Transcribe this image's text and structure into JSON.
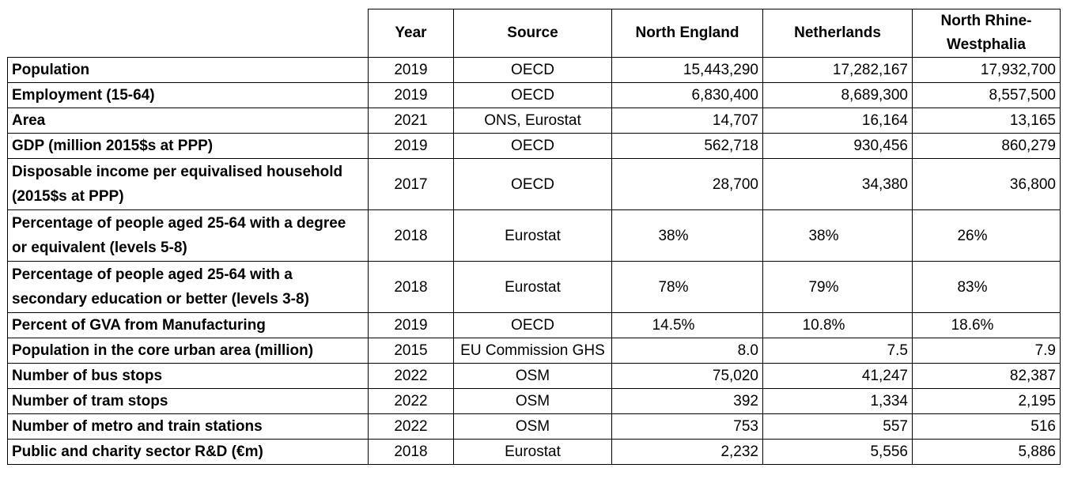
{
  "table": {
    "headers": {
      "label": "",
      "year": "Year",
      "source": "Source",
      "north_england": "North England",
      "netherlands": "Netherlands",
      "nrw": "North Rhine-Westphalia"
    },
    "rows": [
      {
        "label": "Population",
        "year": "2019",
        "source": "OECD",
        "north_england": "15,443,290",
        "netherlands": "17,282,167",
        "nrw": "17,932,700"
      },
      {
        "label": "Employment (15-64)",
        "year": "2019",
        "source": "OECD",
        "north_england": "6,830,400",
        "netherlands": "8,689,300",
        "nrw": "8,557,500"
      },
      {
        "label": "Area",
        "year": "2021",
        "source": "ONS, Eurostat",
        "north_england": "14,707",
        "netherlands": "16,164",
        "nrw": "13,165"
      },
      {
        "label": "GDP (million 2015$s at PPP)",
        "year": "2019",
        "source": "OECD",
        "north_england": "562,718",
        "netherlands": "930,456",
        "nrw": "860,279"
      },
      {
        "label": "Disposable income per equivalised household (2015$s at PPP)",
        "year": "2017",
        "source": "OECD",
        "north_england": "28,700",
        "netherlands": "34,380",
        "nrw": "36,800"
      },
      {
        "label": "Percentage of people aged 25-64 with a degree or equivalent (levels 5-8)",
        "year": "2018",
        "source": "Eurostat",
        "north_england": "38%",
        "netherlands": "38%",
        "nrw": "26%"
      },
      {
        "label": "Percentage of people aged 25-64 with a secondary education or better (levels 3-8)",
        "year": "2018",
        "source": "Eurostat",
        "north_england": "78%",
        "netherlands": "79%",
        "nrw": "83%"
      },
      {
        "label": "Percent of GVA from Manufacturing",
        "year": "2019",
        "source": "OECD",
        "north_england": "14.5%",
        "netherlands": "10.8%",
        "nrw": "18.6%"
      },
      {
        "label": "Population in the core urban area (million)",
        "year": "2015",
        "source": "EU Commission GHS",
        "north_england": "8.0",
        "netherlands": "7.5",
        "nrw": "7.9"
      },
      {
        "label": "Number of bus stops",
        "year": "2022",
        "source": "OSM",
        "north_england": "75,020",
        "netherlands": "41,247",
        "nrw": "82,387"
      },
      {
        "label": "Number of tram stops",
        "year": "2022",
        "source": "OSM",
        "north_england": "392",
        "netherlands": "1,334",
        "nrw": "2,195"
      },
      {
        "label": "Number of metro and train stations",
        "year": "2022",
        "source": "OSM",
        "north_england": "753",
        "netherlands": "557",
        "nrw": "516"
      },
      {
        "label": "Public and charity sector R&D (€m)",
        "year": "2018",
        "source": "Eurostat",
        "north_england": "2,232",
        "netherlands": "5,556",
        "nrw": "5,886"
      }
    ]
  }
}
